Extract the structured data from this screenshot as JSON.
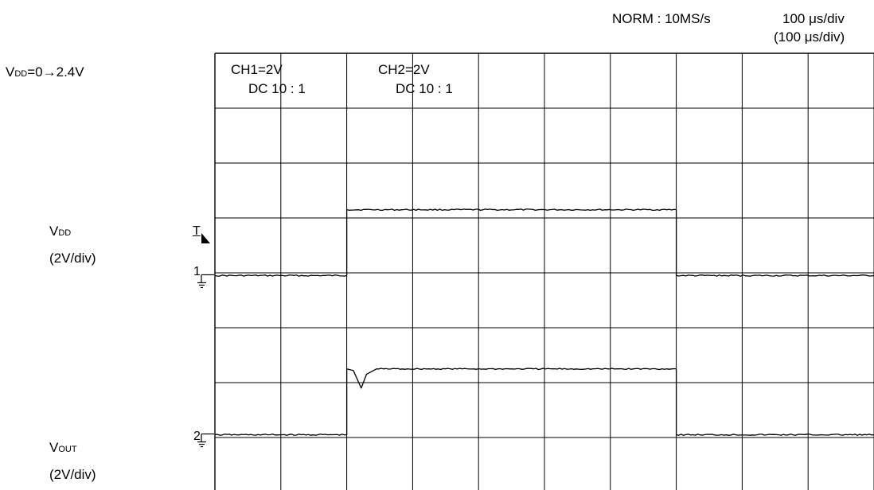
{
  "header": {
    "mode": "NORM : 10MS/s",
    "timebase": "100 μs/div",
    "timebase_alt": "(100 μs/div)"
  },
  "labels": {
    "condition": {
      "prefix": "V",
      "sub": "DD",
      "suffix": "=0→2.4V"
    },
    "vdd": {
      "prefix": "V",
      "sub": "DD",
      "scale": "(2V/div)"
    },
    "vout": {
      "prefix": "V",
      "sub": "OUT",
      "scale": "(2V/div)"
    }
  },
  "channels": [
    {
      "name": "CH1=2V",
      "coupling": "DC  10 : 1"
    },
    {
      "name": "CH2=2V",
      "coupling": "DC  10 : 1"
    }
  ],
  "markers": {
    "trigger": "T",
    "ch1": "1",
    "ch2": "2"
  },
  "chart_data": {
    "type": "line",
    "title": "",
    "xlabel": "",
    "ylabel": "",
    "x_unit": "div",
    "y_unit": "div",
    "xlim": [
      0,
      10
    ],
    "ylim": [
      -4,
      4
    ],
    "grid": true,
    "series": [
      {
        "name": "VDD",
        "x": [
          0,
          2,
          2,
          7,
          7,
          10
        ],
        "y": [
          -0.05,
          -0.05,
          1.15,
          1.15,
          -0.05,
          -0.05
        ]
      },
      {
        "name": "VOUT",
        "x": [
          0,
          2,
          2,
          2.1,
          2.22,
          2.3,
          2.45,
          7,
          7,
          10
        ],
        "y": [
          -2.95,
          -2.95,
          -1.75,
          -1.78,
          -2.1,
          -1.85,
          -1.75,
          -1.75,
          -2.95,
          -2.95
        ]
      }
    ]
  }
}
